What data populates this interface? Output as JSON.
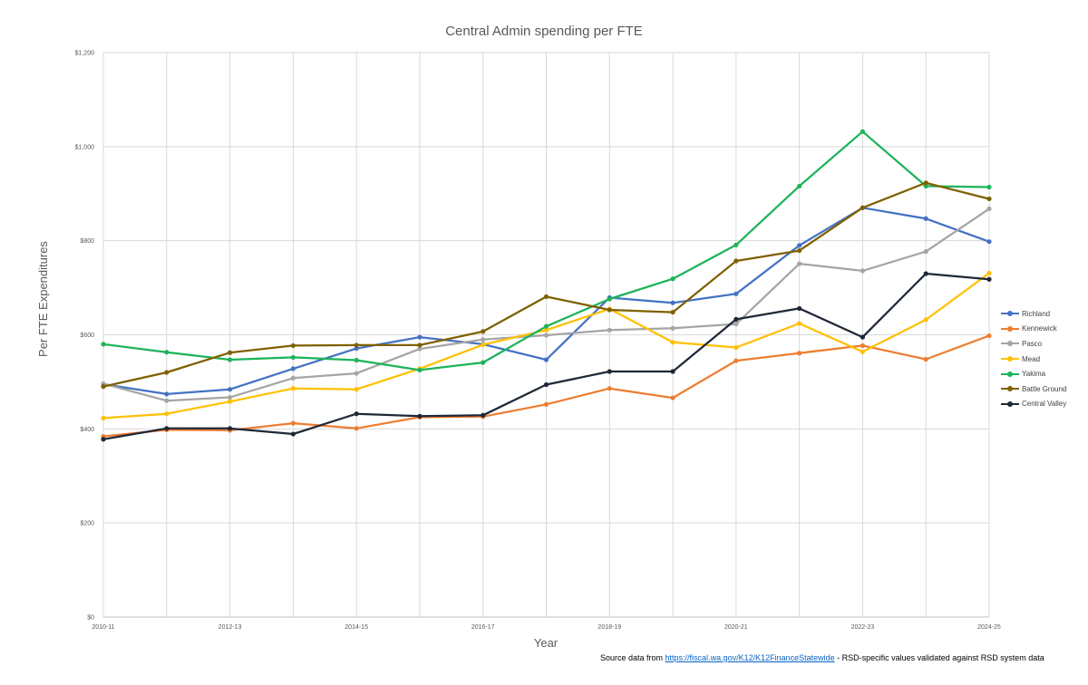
{
  "chart_data": {
    "type": "line",
    "title": "Central Admin spending per FTE",
    "xlabel": "Year",
    "ylabel": "Per FTE Expenditures",
    "categories": [
      "2010-11",
      "2011-12",
      "2012-13",
      "2013-14",
      "2014-15",
      "2015-16",
      "2016-17",
      "2017-18",
      "2018-19",
      "2019-20",
      "2020-21",
      "2021-22",
      "2022-23",
      "2023-24",
      "2024-25"
    ],
    "x_tick_labels": [
      "2010-11",
      "",
      "2012-13",
      "",
      "2014-15",
      "",
      "2016-17",
      "",
      "2018-19",
      "",
      "2020-21",
      "",
      "2022-23",
      "",
      "2024-25"
    ],
    "ylim": [
      0,
      1200
    ],
    "y_ticks": [
      0,
      200,
      400,
      600,
      800,
      1000,
      1200
    ],
    "y_tick_labels": [
      "$0",
      "$200",
      "$400",
      "$600",
      "$800",
      "$1,000",
      "$1,200"
    ],
    "grid": true,
    "legend_position": "right",
    "series": [
      {
        "name": "Richland",
        "color": "#4472c4",
        "values": [
          495,
          474,
          484,
          528,
          571,
          595,
          580,
          547,
          679,
          668,
          687,
          790,
          870,
          847,
          798
        ]
      },
      {
        "name": "Kennewick",
        "color": "#ed7d31",
        "values": [
          384,
          398,
          397,
          412,
          401,
          425,
          426,
          452,
          486,
          466,
          545,
          561,
          577,
          548,
          598
        ]
      },
      {
        "name": "Pasco",
        "color": "#a5a5a5",
        "values": [
          496,
          460,
          467,
          508,
          518,
          570,
          590,
          599,
          610,
          614,
          623,
          751,
          736,
          777,
          868
        ]
      },
      {
        "name": "Mead",
        "color": "#ffc000",
        "values": [
          423,
          432,
          458,
          486,
          484,
          528,
          579,
          610,
          655,
          584,
          573,
          624,
          564,
          632,
          731
        ]
      },
      {
        "name": "Yakima",
        "color": "#1db35a",
        "values": [
          580,
          563,
          547,
          552,
          546,
          525,
          541,
          618,
          676,
          719,
          791,
          916,
          1032,
          916,
          914
        ]
      },
      {
        "name": "Battle Ground",
        "color": "#7f6000",
        "values": [
          490,
          520,
          562,
          577,
          578,
          578,
          607,
          681,
          653,
          648,
          757,
          779,
          870,
          923,
          889
        ]
      },
      {
        "name": "Central Valley",
        "color": "#1f2837",
        "values": [
          378,
          401,
          401,
          389,
          432,
          427,
          429,
          494,
          522,
          522,
          633,
          656,
          595,
          730,
          718
        ]
      }
    ]
  },
  "footer": {
    "prefix": "Source data from ",
    "link": "https://fiscal.wa.gov/K12/K12FinanceStatewide",
    "suffix": " - RSD-specific values validated against RSD system data"
  }
}
